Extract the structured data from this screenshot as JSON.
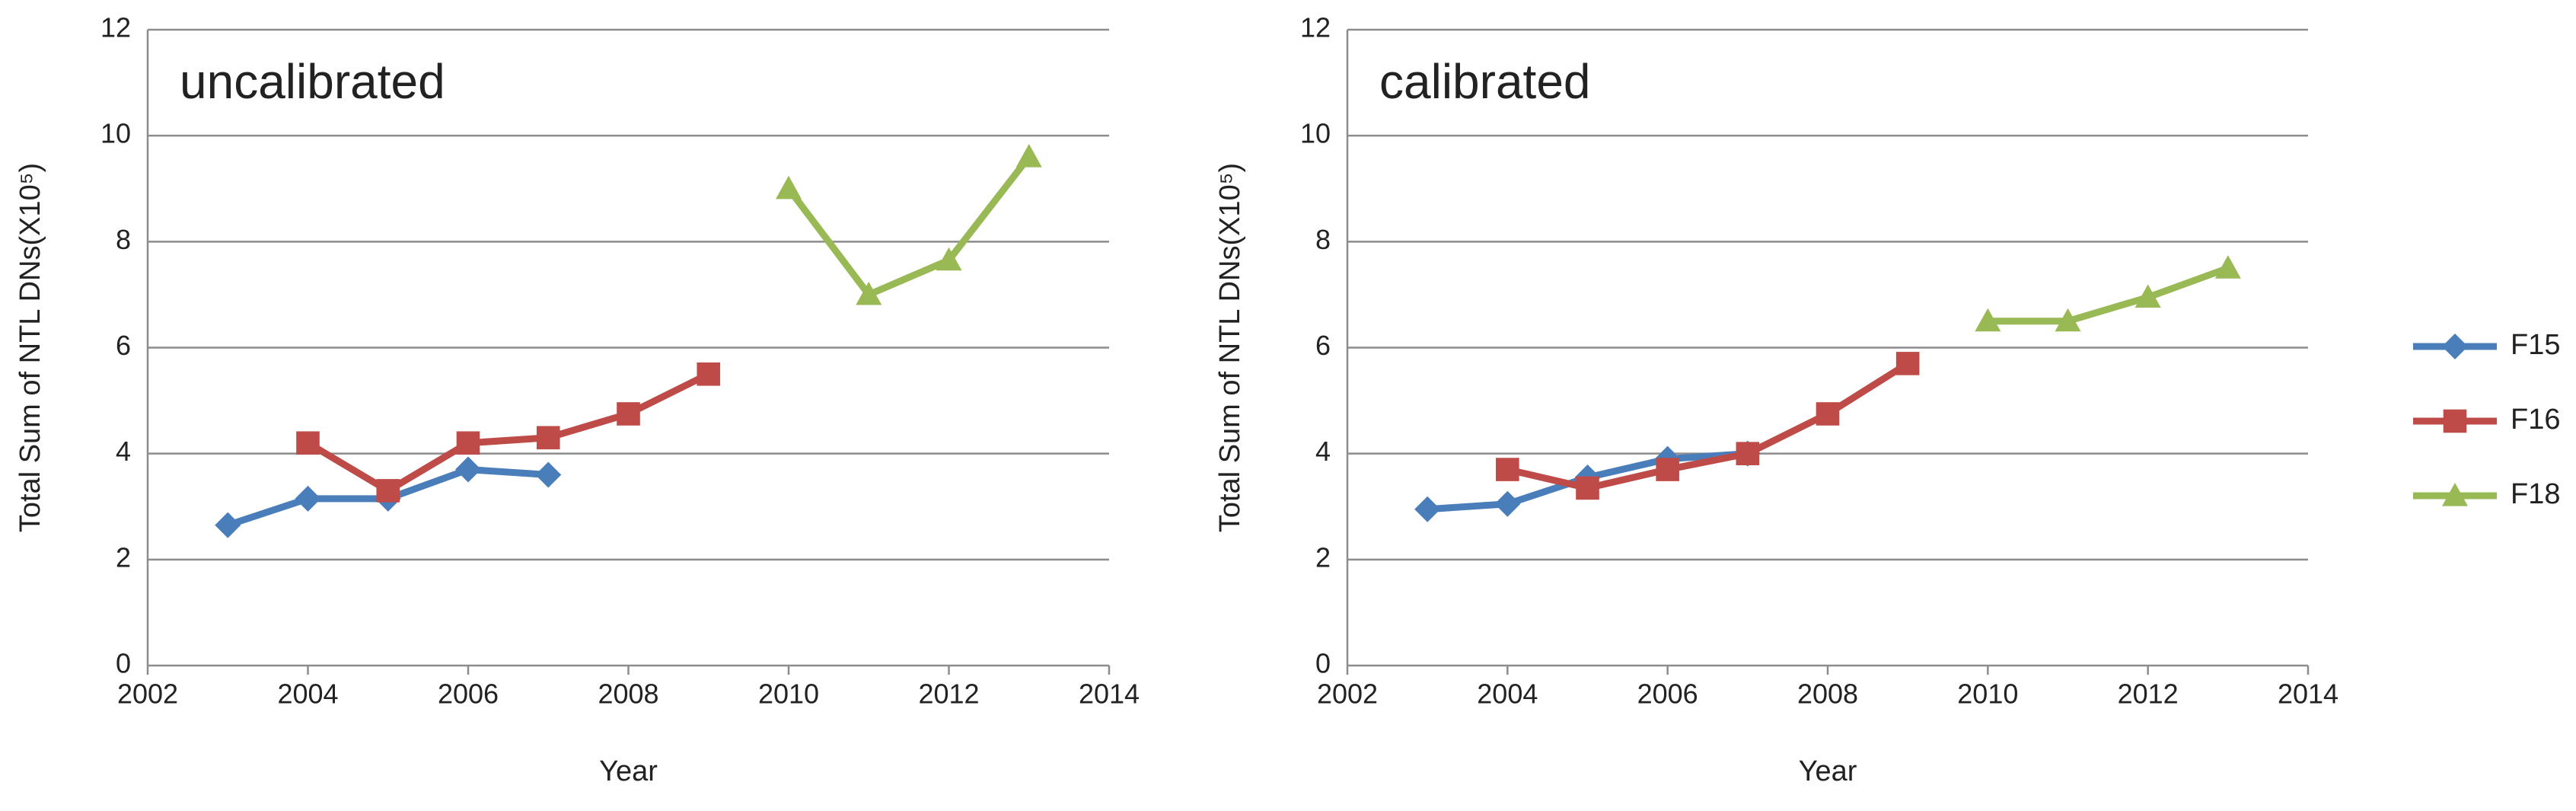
{
  "chart_data": [
    {
      "type": "line",
      "title": "uncalibrated",
      "x_label": "Year",
      "y_label": "Total Sum of NTL DNs(X10⁵)",
      "xlim": [
        2002,
        2014
      ],
      "xticks": [
        2002,
        2004,
        2006,
        2008,
        2010,
        2012,
        2014
      ],
      "ylim": [
        0,
        12
      ],
      "yticks": [
        0,
        2,
        4,
        6,
        8,
        10,
        12
      ],
      "grid": true,
      "series": [
        {
          "name": "F15",
          "color": "#4a7ebb",
          "marker": "diamond",
          "x": [
            2003,
            2004,
            2005,
            2006,
            2007
          ],
          "values": [
            2.65,
            3.15,
            3.15,
            3.7,
            3.6
          ]
        },
        {
          "name": "F16",
          "color": "#be4b48",
          "marker": "square",
          "x": [
            2004,
            2005,
            2006,
            2007,
            2008,
            2009
          ],
          "values": [
            4.2,
            3.3,
            4.2,
            4.3,
            4.75,
            5.5
          ]
        },
        {
          "name": "F18",
          "color": "#98b954",
          "marker": "triangle",
          "x": [
            2010,
            2011,
            2012,
            2013
          ],
          "values": [
            9.0,
            7.0,
            7.65,
            9.6
          ]
        }
      ]
    },
    {
      "type": "line",
      "title": "calibrated",
      "x_label": "Year",
      "y_label": "Total Sum of NTL DNs(X10⁵)",
      "xlim": [
        2002,
        2014
      ],
      "xticks": [
        2002,
        2004,
        2006,
        2008,
        2010,
        2012,
        2014
      ],
      "ylim": [
        0,
        12
      ],
      "yticks": [
        0,
        2,
        4,
        6,
        8,
        10,
        12
      ],
      "grid": true,
      "legend": "right",
      "series": [
        {
          "name": "F15",
          "color": "#4a7ebb",
          "marker": "diamond",
          "x": [
            2003,
            2004,
            2005,
            2006,
            2007
          ],
          "values": [
            2.95,
            3.05,
            3.55,
            3.9,
            4.0
          ]
        },
        {
          "name": "F16",
          "color": "#be4b48",
          "marker": "square",
          "x": [
            2004,
            2005,
            2006,
            2007,
            2008,
            2009
          ],
          "values": [
            3.7,
            3.35,
            3.7,
            4.0,
            4.75,
            5.7
          ]
        },
        {
          "name": "F18",
          "color": "#98b954",
          "marker": "triangle",
          "x": [
            2010,
            2011,
            2012,
            2013
          ],
          "values": [
            6.5,
            6.5,
            6.95,
            7.5
          ]
        }
      ]
    }
  ]
}
